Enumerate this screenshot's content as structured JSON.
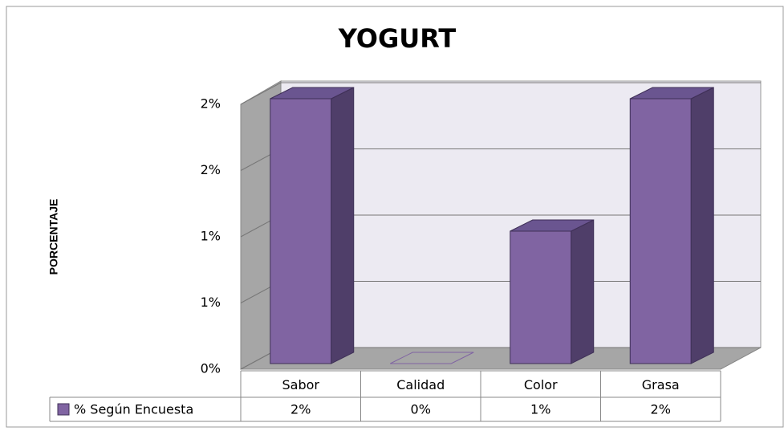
{
  "chart_data": {
    "type": "bar3d",
    "title": "YOGURT",
    "y_label": "PORCENTAJE",
    "categories": [
      "Sabor",
      "Calidad",
      "Color",
      "Grasa"
    ],
    "series": [
      {
        "name": "% Según Encuesta",
        "color": "#8064a2",
        "values": [
          2,
          0,
          1,
          2
        ],
        "value_labels": [
          "2%",
          "0%",
          "1%",
          "2%"
        ]
      }
    ],
    "ylim": [
      0,
      2
    ],
    "yticks": [
      {
        "value": 0,
        "label": "0%"
      },
      {
        "value": 0.5,
        "label": "1%"
      },
      {
        "value": 1,
        "label": "1%"
      },
      {
        "value": 1.5,
        "label": "2%"
      },
      {
        "value": 2,
        "label": "2%"
      }
    ],
    "grid": true,
    "data_table": true
  }
}
